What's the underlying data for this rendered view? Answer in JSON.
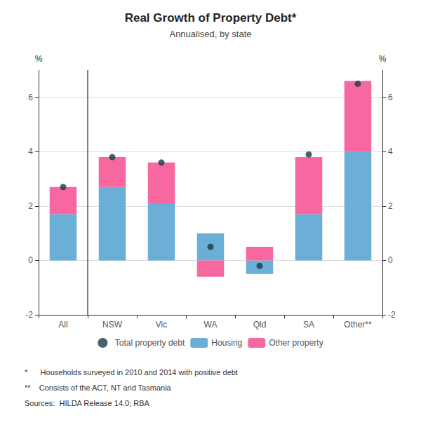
{
  "chart_data": {
    "type": "bar",
    "title": "Real Growth of Property Debt*",
    "subtitle": "Annualised, by state",
    "categories": [
      "All",
      "NSW",
      "Vic",
      "WA",
      "Qld",
      "SA",
      "Other**"
    ],
    "series": [
      {
        "name": "Total property debt",
        "type": "scatter",
        "marker": "circle",
        "color": "#1a3a4a",
        "values": [
          2.7,
          3.8,
          3.6,
          0.5,
          -0.2,
          3.9,
          6.5
        ]
      },
      {
        "name": "Housing",
        "type": "bar",
        "color": "#6baed6",
        "values": [
          1.7,
          2.7,
          2.1,
          1.0,
          -0.5,
          1.7,
          4.0
        ]
      },
      {
        "name": "Other property",
        "type": "bar",
        "color": "#f768a1",
        "values": [
          1.0,
          1.1,
          1.5,
          -0.6,
          0.5,
          2.1,
          2.6
        ]
      }
    ],
    "stacked": true,
    "ylim": [
      -2,
      7
    ],
    "yticks": [
      -2,
      0,
      2,
      4,
      6
    ],
    "y2lim": [
      -2,
      7
    ],
    "y2ticks": [
      -2,
      0,
      2,
      4,
      6
    ],
    "ylabel": "%",
    "y2label": "%",
    "grid": true,
    "legend": "bottom",
    "footnotes": [
      "*      Households surveyed in 2010 and 2014 with positive debt",
      "**    Consists of the ACT, NT and Tasmania",
      "Sources:  HILDA Release 14.0; RBA"
    ]
  }
}
